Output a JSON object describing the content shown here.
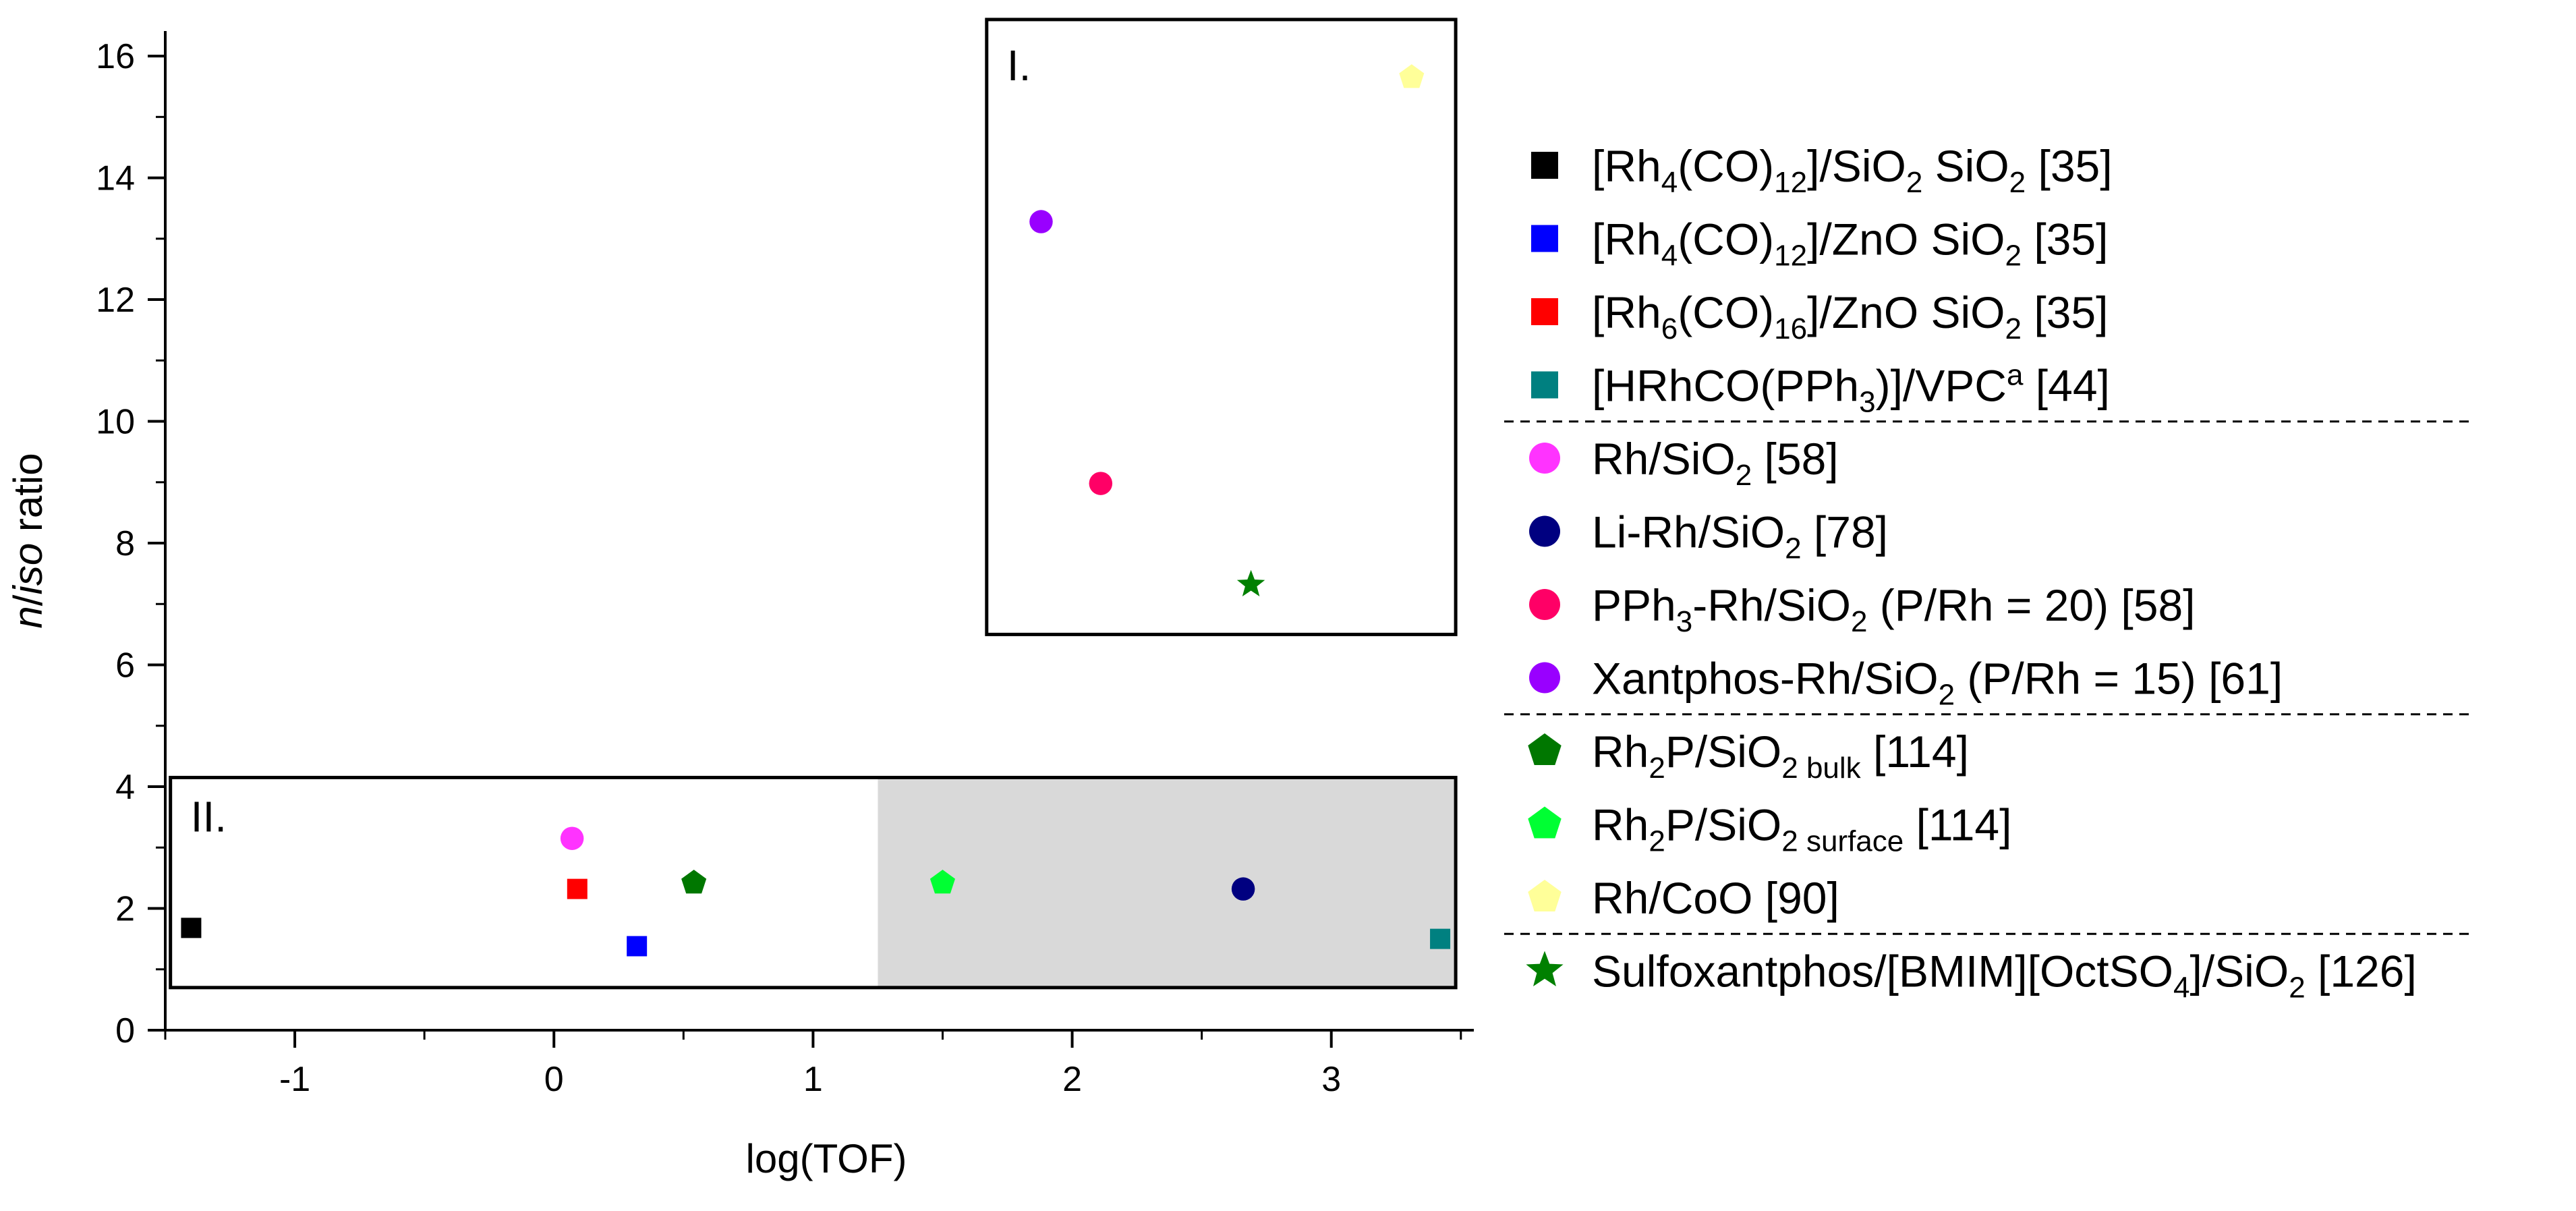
{
  "chart_data": {
    "type": "scatter",
    "xlabel": "log(TOF)",
    "ylabel_parts": [
      {
        "text": "n",
        "style": "italic"
      },
      {
        "text": "/",
        "style": "normal"
      },
      {
        "text": "iso",
        "style": "italic"
      },
      {
        "text": " ratio",
        "style": "normal"
      }
    ],
    "xlim": [
      -1.5,
      3.55
    ],
    "ylim": [
      0,
      16.3
    ],
    "x_ticks": [
      -1,
      0,
      1,
      2,
      3
    ],
    "x_tick_labels": [
      "-1",
      "0",
      "1",
      "2",
      "3"
    ],
    "y_ticks": [
      0,
      2,
      4,
      6,
      8,
      10,
      12,
      14,
      16
    ],
    "y_tick_labels": [
      "0",
      "2",
      "4",
      "6",
      "8",
      "10",
      "12",
      "14",
      "16"
    ],
    "region_I": {
      "label": "I.",
      "x_range": [
        1.67,
        3.48
      ],
      "y_range": [
        6.5,
        16.6
      ]
    },
    "region_II": {
      "label": "II.",
      "x_range": [
        -1.48,
        3.48
      ],
      "y_range": [
        0.7,
        4.15
      ],
      "shaded_x_range": [
        1.25,
        3.48
      ],
      "shade_color": "#d9d9d9"
    },
    "series": [
      {
        "id": "s1",
        "marker": "square",
        "color": "#000000",
        "x": -1.4,
        "y": 1.68,
        "label": [
          {
            "t": "[Rh"
          },
          {
            "t": "4",
            "sub": true
          },
          {
            "t": "(CO)"
          },
          {
            "t": "12",
            "sub": true
          },
          {
            "t": "]/SiO"
          },
          {
            "t": "2",
            "sub": true
          },
          {
            "t": " SiO"
          },
          {
            "t": "2",
            "sub": true
          },
          {
            "t": " [35]"
          }
        ]
      },
      {
        "id": "s2",
        "marker": "square",
        "color": "#0000ff",
        "x": 0.32,
        "y": 1.38,
        "label": [
          {
            "t": "[Rh"
          },
          {
            "t": "4",
            "sub": true
          },
          {
            "t": "(CO)"
          },
          {
            "t": "12",
            "sub": true
          },
          {
            "t": "]/ZnO SiO"
          },
          {
            "t": "2",
            "sub": true
          },
          {
            "t": " [35]"
          }
        ]
      },
      {
        "id": "s3",
        "marker": "square",
        "color": "#ff0000",
        "x": 0.09,
        "y": 2.32,
        "label": [
          {
            "t": "[Rh"
          },
          {
            "t": "6",
            "sub": true
          },
          {
            "t": "(CO)"
          },
          {
            "t": "16",
            "sub": true
          },
          {
            "t": "]/ZnO SiO"
          },
          {
            "t": "2",
            "sub": true
          },
          {
            "t": " [35]"
          }
        ]
      },
      {
        "id": "s4",
        "marker": "square",
        "color": "#008080",
        "x": 3.42,
        "y": 1.5,
        "label": [
          {
            "t": "[HRhCO(PPh"
          },
          {
            "t": "3",
            "sub": true
          },
          {
            "t": ")]/VPC"
          },
          {
            "t": "a",
            "sup": true
          },
          {
            "t": " [44]"
          }
        ]
      },
      {
        "id": "s5",
        "marker": "circle",
        "color": "#ff33ff",
        "x": 0.07,
        "y": 3.15,
        "label": [
          {
            "t": "Rh/SiO"
          },
          {
            "t": "2",
            "sub": true
          },
          {
            "t": " [58]"
          }
        ]
      },
      {
        "id": "s6",
        "marker": "circle",
        "color": "#000080",
        "x": 2.66,
        "y": 2.32,
        "label": [
          {
            "t": "Li-Rh/SiO"
          },
          {
            "t": "2",
            "sub": true
          },
          {
            "t": " [78]"
          }
        ]
      },
      {
        "id": "s7",
        "marker": "circle",
        "color": "#ff0066",
        "x": 2.11,
        "y": 8.98,
        "label": [
          {
            "t": "PPh"
          },
          {
            "t": "3",
            "sub": true
          },
          {
            "t": "-Rh/SiO"
          },
          {
            "t": "2",
            "sub": true
          },
          {
            "t": " (P/Rh = 20) [58]"
          }
        ]
      },
      {
        "id": "s8",
        "marker": "circle",
        "color": "#9900ff",
        "x": 1.88,
        "y": 13.28,
        "label": [
          {
            "t": "Xantphos-Rh/SiO"
          },
          {
            "t": "2",
            "sub": true
          },
          {
            "t": " (P/Rh = 15) [61]"
          }
        ]
      },
      {
        "id": "s9",
        "marker": "pentagon",
        "color": "#007700",
        "x": 0.54,
        "y": 2.42,
        "label": [
          {
            "t": "Rh"
          },
          {
            "t": "2",
            "sub": true
          },
          {
            "t": "P/SiO"
          },
          {
            "t": "2 bulk",
            "sub": true
          },
          {
            "t": " [114]"
          }
        ]
      },
      {
        "id": "s10",
        "marker": "pentagon",
        "color": "#00ff33",
        "x": 1.5,
        "y": 2.42,
        "label": [
          {
            "t": "Rh"
          },
          {
            "t": "2",
            "sub": true
          },
          {
            "t": "P/SiO"
          },
          {
            "t": "2 surface",
            "sub": true
          },
          {
            "t": " [114]"
          }
        ]
      },
      {
        "id": "s11",
        "marker": "pentagon",
        "color": "#ffff99",
        "x": 3.31,
        "y": 15.65,
        "label": [
          {
            "t": "Rh/CoO [90]"
          }
        ]
      },
      {
        "id": "s12",
        "marker": "star",
        "color": "#008000",
        "x": 2.69,
        "y": 7.32,
        "label": [
          {
            "t": "Sulfoxantphos/[BMIM][OctSO"
          },
          {
            "t": "4",
            "sub": true
          },
          {
            "t": "]/SiO"
          },
          {
            "t": "2",
            "sub": true
          },
          {
            "t": " [126]"
          }
        ]
      }
    ],
    "legend_groups": [
      [
        0,
        1,
        2,
        3
      ],
      [
        4,
        5,
        6,
        7
      ],
      [
        8,
        9,
        10
      ],
      [
        11
      ]
    ],
    "legend_position": "right"
  }
}
